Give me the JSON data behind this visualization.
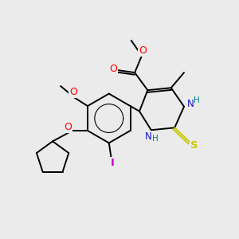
{
  "background_color": "#ebebeb",
  "figsize": [
    3.0,
    3.0
  ],
  "dpi": 100,
  "colors": {
    "C": "#000000",
    "N": "#1414cd",
    "O": "#ff0000",
    "S": "#c8c800",
    "I": "#cc00cc",
    "H_color": "#008080",
    "bond": "#000000"
  },
  "font": "DejaVu Sans"
}
